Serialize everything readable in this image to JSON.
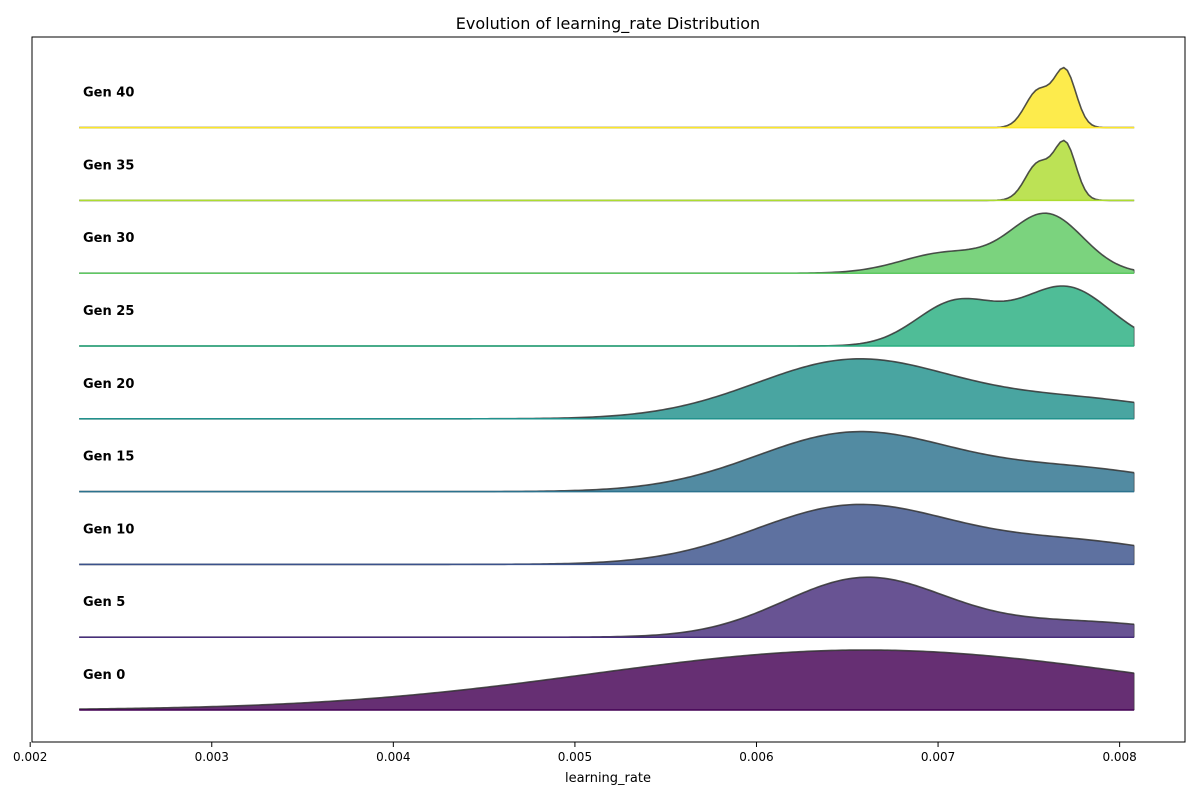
{
  "chart_data": {
    "type": "area",
    "title": "Evolution of learning_rate Distribution",
    "xlabel": "learning_rate",
    "ylabel": "",
    "xlim": [
      0.00201,
      0.00836
    ],
    "xticks": [
      {
        "value": 0.002,
        "label": "0.002"
      },
      {
        "value": 0.003,
        "label": "0.003"
      },
      {
        "value": 0.004,
        "label": "0.004"
      },
      {
        "value": 0.005,
        "label": "0.005"
      },
      {
        "value": 0.006,
        "label": "0.006"
      },
      {
        "value": 0.007,
        "label": "0.007"
      },
      {
        "value": 0.008,
        "label": "0.008"
      }
    ],
    "x_range_density": [
      0.00227,
      0.00808
    ],
    "grid": false,
    "series": [
      {
        "name": "Gen 0",
        "color": "#440154",
        "peak": 0.00664,
        "components": [
          [
            1.0,
            0.0066,
            0.0015
          ]
        ]
      },
      {
        "name": "Gen 5",
        "color": "#472d7b",
        "peak": 0.00664,
        "components": [
          [
            1.0,
            0.0066,
            0.00045
          ],
          [
            0.25,
            0.0078,
            0.0005
          ]
        ]
      },
      {
        "name": "Gen 10",
        "color": "#3b528b",
        "peak": 0.00656,
        "components": [
          [
            1.0,
            0.00655,
            0.00055
          ],
          [
            0.35,
            0.0078,
            0.0005
          ]
        ]
      },
      {
        "name": "Gen 15",
        "color": "#2c728e",
        "peak": 0.00656,
        "components": [
          [
            1.0,
            0.00655,
            0.00055
          ],
          [
            0.35,
            0.0078,
            0.0005
          ]
        ]
      },
      {
        "name": "Gen 20",
        "color": "#21918c",
        "peak": 0.00656,
        "components": [
          [
            1.0,
            0.00655,
            0.00055
          ],
          [
            0.3,
            0.0078,
            0.0005
          ]
        ]
      },
      {
        "name": "Gen 25",
        "color": "#28ae80",
        "peak": 0.00763,
        "components": [
          [
            0.7,
            0.0071,
            0.00022
          ],
          [
            0.95,
            0.0077,
            0.00025
          ]
        ]
      },
      {
        "name": "Gen 30",
        "color": "#5ec962",
        "peak": 0.00763,
        "components": [
          [
            0.35,
            0.00705,
            0.00025
          ],
          [
            1.0,
            0.0076,
            0.0002
          ]
        ]
      },
      {
        "name": "Gen 35",
        "color": "#addc30",
        "peak": 0.00767,
        "components": [
          [
            0.65,
            0.00755,
            7e-05
          ],
          [
            1.0,
            0.0077,
            6e-05
          ]
        ]
      },
      {
        "name": "Gen 40",
        "color": "#fde725",
        "peak": 0.00767,
        "components": [
          [
            0.65,
            0.00755,
            7e-05
          ],
          [
            1.0,
            0.0077,
            6e-05
          ]
        ]
      }
    ]
  }
}
